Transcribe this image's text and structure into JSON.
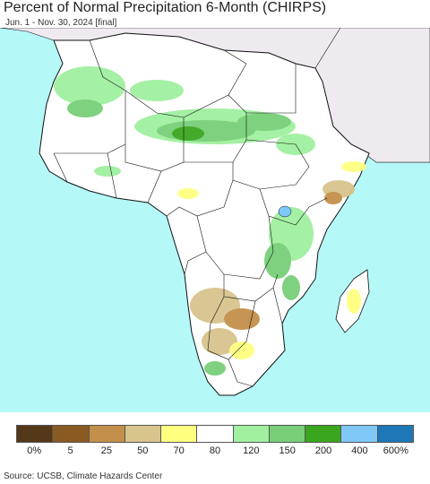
{
  "title": "Percent of Normal Precipitation 6-Month (CHIRPS)",
  "subtitle": "Jun. 1 - Nov. 30, 2024 [final]",
  "legend": {
    "colors": [
      "#54381a",
      "#8b5a22",
      "#c38f4a",
      "#d8c48d",
      "#ffff80",
      "#ffffff",
      "#a0f0a0",
      "#78cf78",
      "#3aa61e",
      "#80c8f8",
      "#1e78b8"
    ],
    "ticks": [
      "0%",
      "5",
      "25",
      "50",
      "70",
      "80",
      "120",
      "150",
      "200",
      "400",
      "600%"
    ]
  },
  "source": "Source: UCSB, Climate Hazards Center",
  "colors": {
    "ocean": "#b4f8f8",
    "land": "#ffffff",
    "outside": "#eeeaf0",
    "border": "#111111"
  }
}
